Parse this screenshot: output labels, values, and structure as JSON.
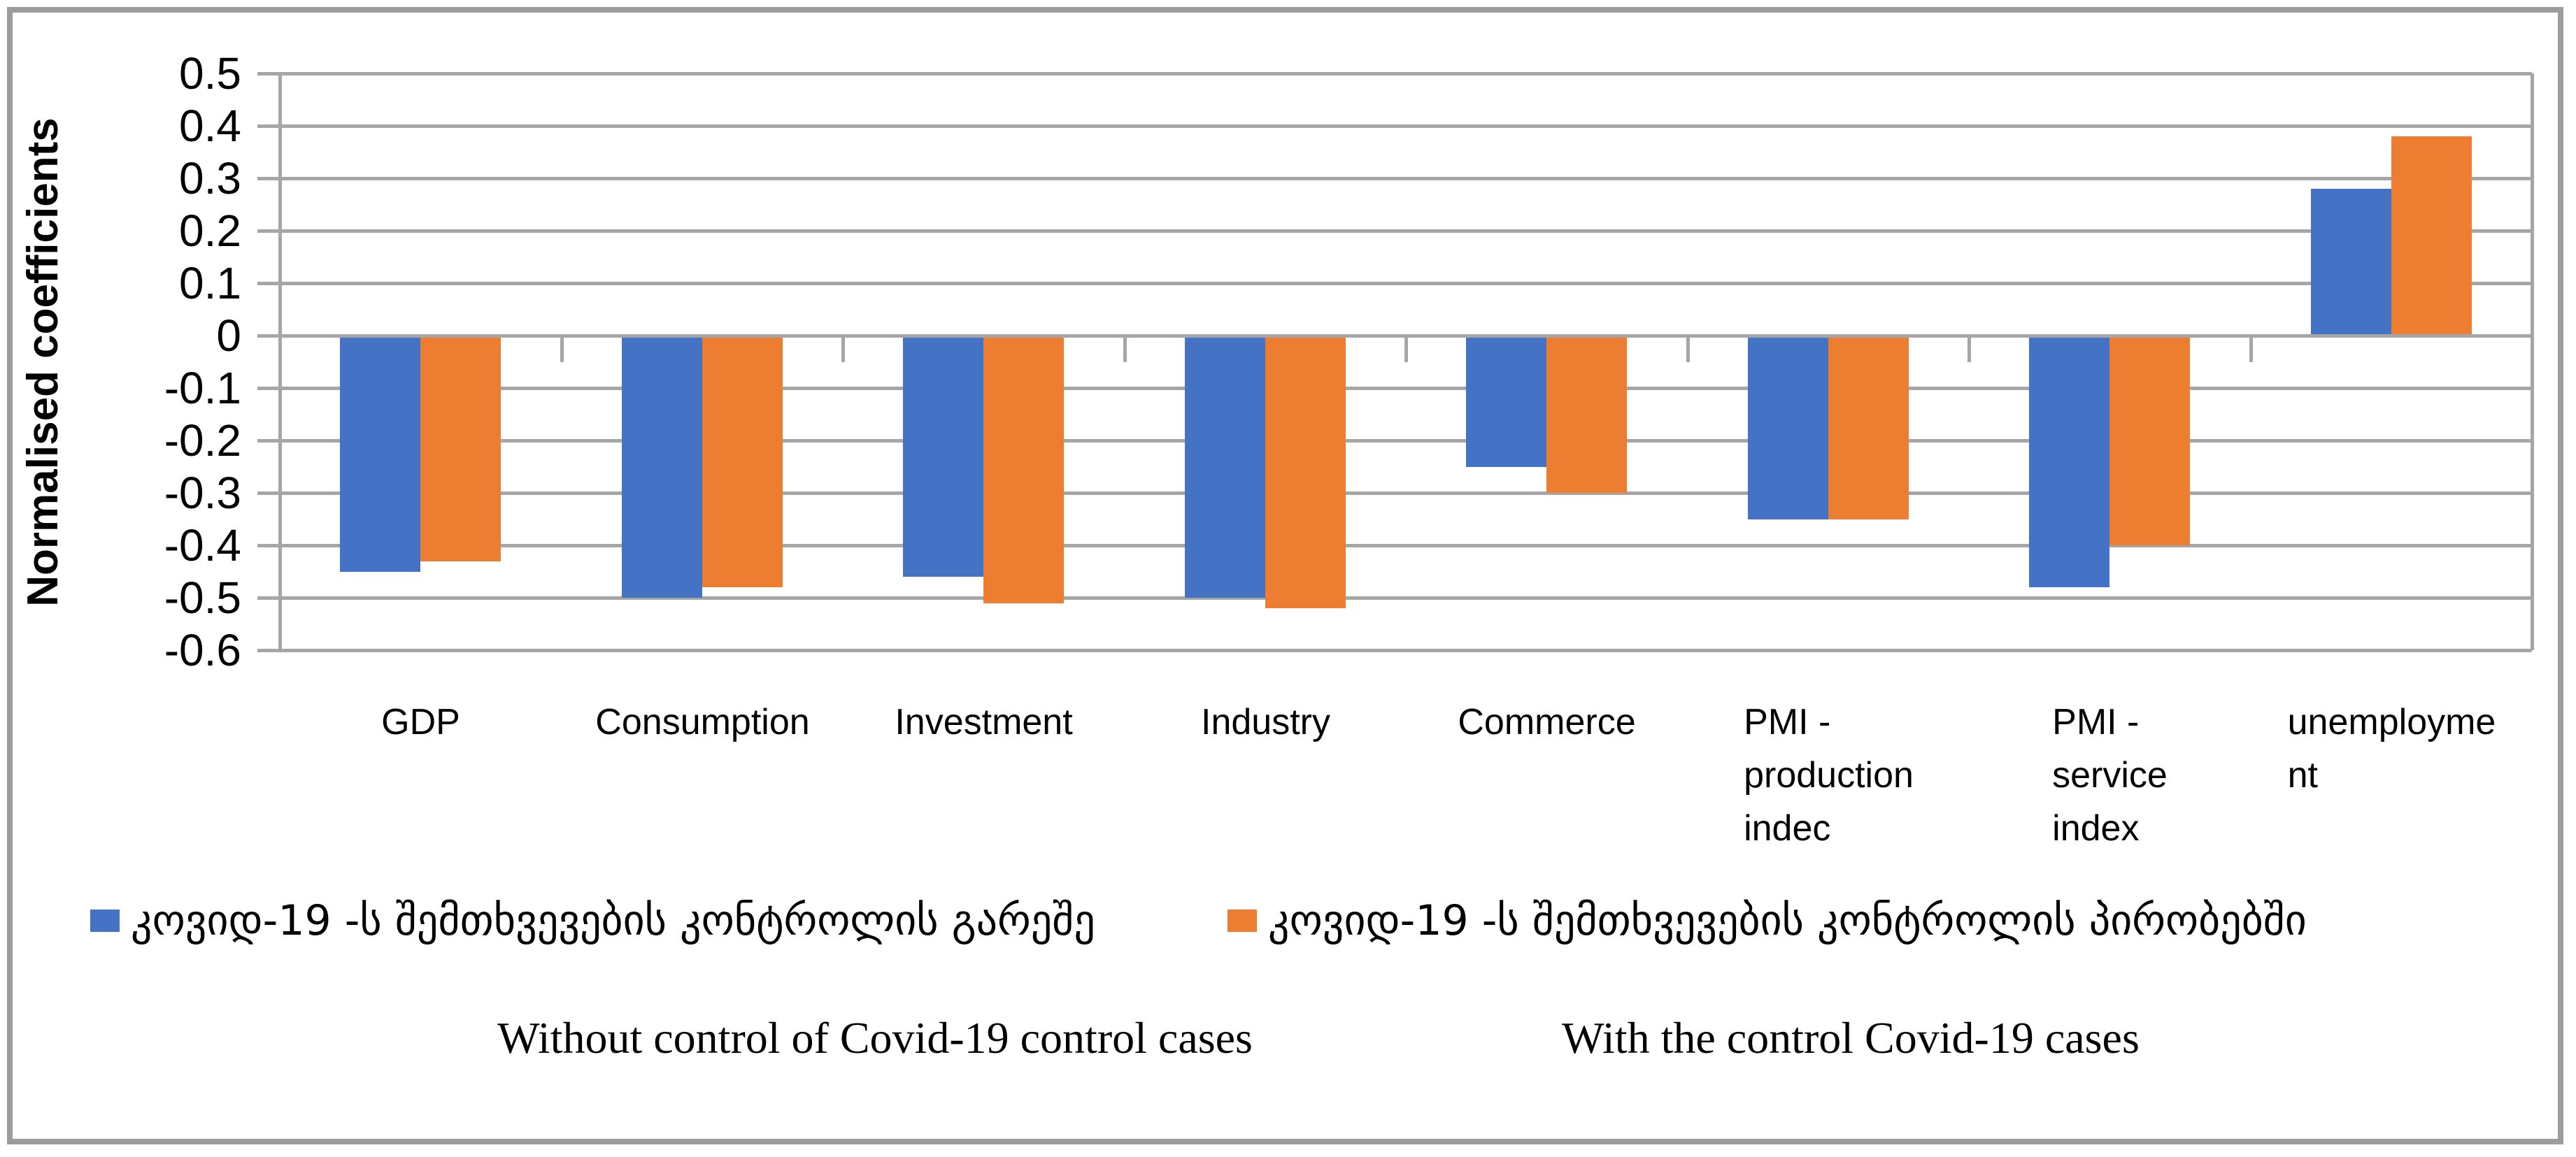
{
  "chart_data": {
    "type": "bar",
    "title": "",
    "ylabel": "Normalised coefficients",
    "xlabel": "",
    "ylim": [
      -0.6,
      0.5
    ],
    "ytick_step": 0.1,
    "ytick_labels": [
      "0.5",
      "0.4",
      "0.3",
      "0.2",
      "0.1",
      "0",
      "-0.1",
      "-0.2",
      "-0.3",
      "-0.4",
      "-0.5",
      "-0.6"
    ],
    "grid": true,
    "legend_position": "bottom",
    "categories": [
      {
        "label": "GDP",
        "lines": [
          "GDP"
        ]
      },
      {
        "label": "Consumption",
        "lines": [
          "Consumption"
        ]
      },
      {
        "label": "Investment",
        "lines": [
          "Investment"
        ]
      },
      {
        "label": "Industry",
        "lines": [
          "Industry"
        ]
      },
      {
        "label": "Commerce",
        "lines": [
          "Commerce"
        ]
      },
      {
        "label": "PMI - production indec",
        "lines": [
          "PMI -",
          "production",
          "indec"
        ]
      },
      {
        "label": "PMI - service index",
        "lines": [
          "PMI -",
          "service",
          "index"
        ]
      },
      {
        "label": "unemployment",
        "lines": [
          "unemployme",
          "nt"
        ]
      }
    ],
    "series": [
      {
        "name": "კოვიდ-19 -ს შემთხვევების კონტროლის გარეშე",
        "color": "#4472C4",
        "values": [
          -0.45,
          -0.5,
          -0.46,
          -0.5,
          -0.25,
          -0.35,
          -0.48,
          0.28
        ]
      },
      {
        "name": "კოვიდ-19 -ს შემთხვევების კონტროლის პირობებში",
        "color": "#ED7D31",
        "values": [
          -0.43,
          -0.48,
          -0.51,
          -0.52,
          -0.3,
          -0.35,
          -0.4,
          0.38
        ]
      }
    ],
    "annotations": [
      "Without control of Covid-19 control cases",
      "With the control Covid-19 cases"
    ],
    "colors": {
      "grid": "#A6A6A6",
      "axis": "#A6A6A6",
      "border": "#9C9C9C",
      "text": "#000000"
    }
  }
}
